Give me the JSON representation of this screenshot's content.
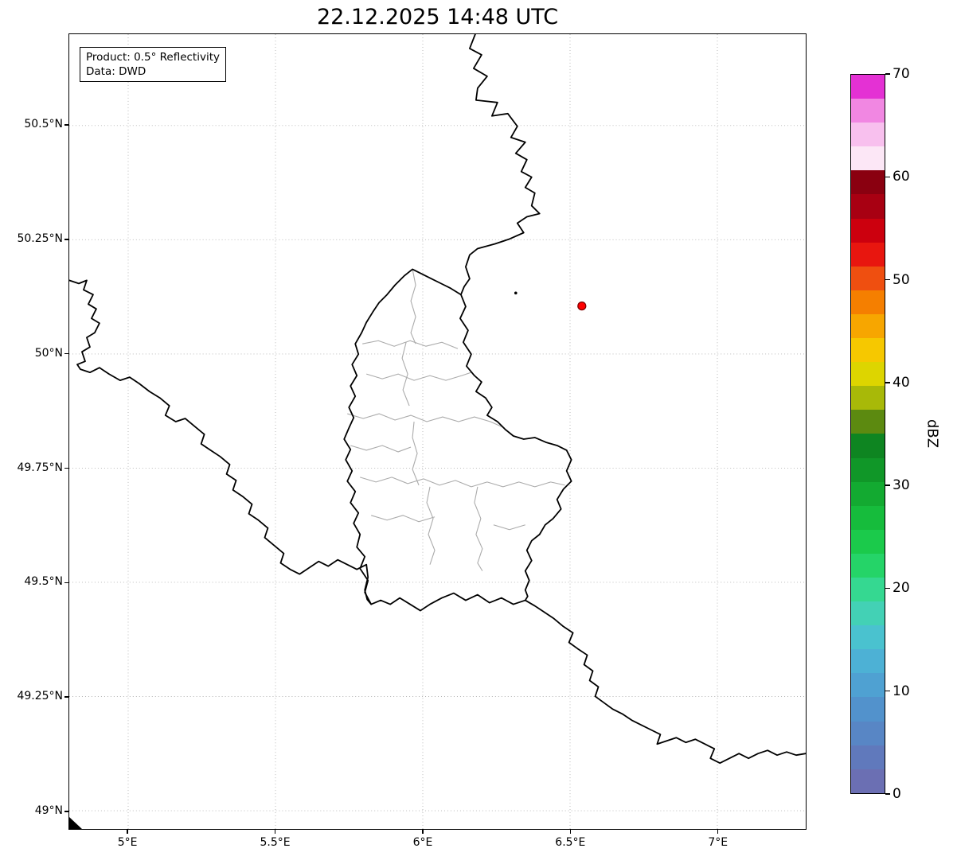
{
  "title": "22.12.2025 14:48 UTC",
  "annotation": {
    "line1": "Product: 0.5° Reflectivity",
    "line2": "Data: DWD"
  },
  "axes": {
    "x": {
      "min": 4.8,
      "max": 7.3,
      "ticks": [
        {
          "value": 5.0,
          "label": "5°E"
        },
        {
          "value": 5.5,
          "label": "5.5°E"
        },
        {
          "value": 6.0,
          "label": "6°E"
        },
        {
          "value": 6.5,
          "label": "6.5°E"
        },
        {
          "value": 7.0,
          "label": "7°E"
        }
      ]
    },
    "y": {
      "min": 48.96,
      "max": 50.7,
      "ticks": [
        {
          "value": 49.0,
          "label": "49°N"
        },
        {
          "value": 49.25,
          "label": "49.25°N"
        },
        {
          "value": 49.5,
          "label": "49.5°N"
        },
        {
          "value": 49.75,
          "label": "49.75°N"
        },
        {
          "value": 50.0,
          "label": "50°N"
        },
        {
          "value": 50.25,
          "label": "50.25°N"
        },
        {
          "value": 50.5,
          "label": "50.5°N"
        }
      ]
    }
  },
  "colorbar": {
    "label": "dBZ",
    "min": 0,
    "max": 70,
    "ticks": [
      0,
      10,
      20,
      30,
      40,
      50,
      60,
      70
    ],
    "colors": [
      "#6b6fb3",
      "#6079bc",
      "#5886c5",
      "#5292cc",
      "#4fa1d2",
      "#4db1d5",
      "#4ac2cf",
      "#43d1b5",
      "#35d891",
      "#25d468",
      "#1bca4b",
      "#16bc3c",
      "#13aa31",
      "#109728",
      "#0e8521",
      "#5c8a10",
      "#a8b908",
      "#ddd500",
      "#f6c800",
      "#f7a600",
      "#f57f00",
      "#ef4f10",
      "#e8160f",
      "#cc000e",
      "#a80012",
      "#8a0010",
      "#fce7f6",
      "#f8c0ee",
      "#f187e2",
      "#e431d4"
    ]
  },
  "marker": {
    "lon": 6.54,
    "lat": 50.105,
    "fill": "#ff0000",
    "edge": "#7f0000"
  },
  "style": {
    "grid_color": "#b3b3b3",
    "country_border_color": "#000000",
    "district_border_color": "#ababab"
  },
  "map_layers": {
    "units": "plot-px",
    "country_borders": [
      [
        [
          511,
          0
        ],
        [
          504,
          18
        ],
        [
          519,
          26
        ],
        [
          509,
          43
        ],
        [
          526,
          53
        ],
        [
          514,
          68
        ],
        [
          512,
          83
        ],
        [
          539,
          86
        ],
        [
          532,
          103
        ],
        [
          552,
          100
        ],
        [
          564,
          116
        ],
        [
          556,
          130
        ],
        [
          574,
          136
        ],
        [
          562,
          150
        ],
        [
          576,
          158
        ],
        [
          569,
          173
        ],
        [
          582,
          180
        ],
        [
          574,
          193
        ],
        [
          586,
          200
        ],
        [
          582,
          216
        ],
        [
          592,
          226
        ],
        [
          576,
          230
        ],
        [
          564,
          238
        ],
        [
          572,
          250
        ],
        [
          554,
          258
        ],
        [
          536,
          264
        ],
        [
          514,
          270
        ],
        [
          504,
          278
        ],
        [
          499,
          293
        ],
        [
          504,
          308
        ],
        [
          497,
          318
        ],
        [
          493,
          328
        ]
      ],
      [
        [
          493,
          328
        ],
        [
          499,
          343
        ],
        [
          492,
          358
        ],
        [
          502,
          373
        ],
        [
          496,
          388
        ],
        [
          506,
          403
        ],
        [
          500,
          418
        ],
        [
          510,
          430
        ],
        [
          519,
          438
        ],
        [
          512,
          450
        ],
        [
          524,
          458
        ],
        [
          532,
          470
        ],
        [
          526,
          480
        ],
        [
          539,
          488
        ],
        [
          549,
          498
        ],
        [
          559,
          506
        ],
        [
          572,
          510
        ],
        [
          586,
          508
        ],
        [
          600,
          514
        ],
        [
          614,
          518
        ],
        [
          626,
          524
        ],
        [
          632,
          536
        ],
        [
          626,
          550
        ],
        [
          632,
          563
        ],
        [
          622,
          573
        ],
        [
          614,
          586
        ],
        [
          619,
          598
        ],
        [
          609,
          610
        ],
        [
          599,
          618
        ],
        [
          592,
          630
        ],
        [
          582,
          638
        ],
        [
          576,
          650
        ],
        [
          582,
          663
        ],
        [
          574,
          676
        ],
        [
          579,
          688
        ],
        [
          574,
          700
        ],
        [
          577,
          708
        ],
        [
          574,
          713
        ],
        [
          559,
          718
        ],
        [
          544,
          710
        ],
        [
          529,
          716
        ],
        [
          514,
          706
        ],
        [
          499,
          713
        ],
        [
          484,
          704
        ],
        [
          469,
          710
        ],
        [
          454,
          718
        ],
        [
          442,
          726
        ],
        [
          429,
          718
        ],
        [
          416,
          710
        ],
        [
          404,
          718
        ],
        [
          392,
          713
        ],
        [
          380,
          718
        ],
        [
          372,
          703
        ],
        [
          376,
          688
        ],
        [
          366,
          673
        ],
        [
          372,
          658
        ],
        [
          362,
          646
        ],
        [
          366,
          630
        ],
        [
          358,
          616
        ],
        [
          364,
          603
        ],
        [
          354,
          590
        ],
        [
          360,
          576
        ],
        [
          350,
          563
        ],
        [
          356,
          550
        ],
        [
          348,
          536
        ],
        [
          354,
          523
        ],
        [
          346,
          510
        ],
        [
          352,
          496
        ],
        [
          358,
          483
        ],
        [
          352,
          470
        ],
        [
          360,
          456
        ],
        [
          354,
          443
        ],
        [
          362,
          430
        ],
        [
          356,
          416
        ],
        [
          364,
          403
        ],
        [
          360,
          390
        ],
        [
          368,
          376
        ],
        [
          374,
          363
        ],
        [
          382,
          350
        ],
        [
          390,
          338
        ],
        [
          400,
          328
        ],
        [
          410,
          316
        ],
        [
          422,
          304
        ],
        [
          432,
          296
        ],
        [
          444,
          302
        ],
        [
          456,
          308
        ],
        [
          468,
          314
        ],
        [
          480,
          320
        ],
        [
          493,
          328
        ]
      ],
      [
        [
          0,
          310
        ],
        [
          12,
          314
        ],
        [
          22,
          310
        ],
        [
          18,
          322
        ],
        [
          30,
          328
        ],
        [
          24,
          340
        ],
        [
          34,
          346
        ],
        [
          28,
          358
        ],
        [
          38,
          364
        ],
        [
          32,
          376
        ],
        [
          22,
          382
        ],
        [
          26,
          394
        ],
        [
          16,
          400
        ],
        [
          20,
          412
        ],
        [
          10,
          416
        ],
        [
          14,
          422
        ],
        [
          26,
          426
        ],
        [
          38,
          420
        ],
        [
          50,
          428
        ],
        [
          64,
          436
        ],
        [
          76,
          432
        ],
        [
          88,
          440
        ],
        [
          101,
          450
        ],
        [
          114,
          458
        ],
        [
          126,
          468
        ],
        [
          121,
          480
        ],
        [
          134,
          488
        ],
        [
          146,
          484
        ],
        [
          158,
          494
        ],
        [
          170,
          504
        ],
        [
          166,
          516
        ],
        [
          178,
          524
        ],
        [
          190,
          532
        ],
        [
          202,
          542
        ],
        [
          198,
          554
        ],
        [
          210,
          562
        ],
        [
          206,
          574
        ],
        [
          218,
          582
        ],
        [
          230,
          592
        ],
        [
          226,
          604
        ],
        [
          238,
          612
        ],
        [
          250,
          622
        ],
        [
          246,
          634
        ],
        [
          258,
          644
        ],
        [
          270,
          654
        ],
        [
          266,
          666
        ],
        [
          278,
          674
        ],
        [
          290,
          680
        ],
        [
          302,
          672
        ],
        [
          314,
          664
        ],
        [
          326,
          670
        ],
        [
          338,
          662
        ],
        [
          350,
          668
        ],
        [
          362,
          674
        ],
        [
          374,
          668
        ],
        [
          376,
          684
        ],
        [
          372,
          700
        ],
        [
          375,
          712
        ],
        [
          380,
          718
        ]
      ],
      [
        [
          574,
          713
        ],
        [
          586,
          720
        ],
        [
          598,
          728
        ],
        [
          610,
          736
        ],
        [
          622,
          746
        ],
        [
          634,
          754
        ],
        [
          629,
          766
        ],
        [
          640,
          774
        ],
        [
          652,
          782
        ],
        [
          648,
          794
        ],
        [
          659,
          802
        ],
        [
          655,
          814
        ],
        [
          666,
          822
        ],
        [
          662,
          834
        ],
        [
          673,
          842
        ],
        [
          684,
          850
        ],
        [
          696,
          856
        ],
        [
          708,
          864
        ],
        [
          720,
          870
        ],
        [
          732,
          876
        ],
        [
          744,
          882
        ],
        [
          740,
          894
        ],
        [
          752,
          890
        ],
        [
          764,
          886
        ],
        [
          776,
          892
        ],
        [
          788,
          888
        ],
        [
          800,
          894
        ],
        [
          812,
          900
        ],
        [
          807,
          912
        ],
        [
          819,
          918
        ],
        [
          831,
          912
        ],
        [
          843,
          906
        ],
        [
          855,
          912
        ],
        [
          867,
          906
        ],
        [
          879,
          902
        ],
        [
          891,
          908
        ],
        [
          903,
          904
        ],
        [
          915,
          908
        ],
        [
          927,
          906
        ]
      ]
    ],
    "district_borders": [
      [
        [
          369,
          390
        ],
        [
          389,
          386
        ],
        [
          409,
          393
        ],
        [
          429,
          386
        ],
        [
          449,
          393
        ],
        [
          469,
          388
        ],
        [
          489,
          396
        ]
      ],
      [
        [
          374,
          428
        ],
        [
          394,
          434
        ],
        [
          414,
          428
        ],
        [
          434,
          436
        ],
        [
          454,
          430
        ],
        [
          474,
          436
        ],
        [
          494,
          430
        ],
        [
          506,
          426
        ]
      ],
      [
        [
          424,
          388
        ],
        [
          419,
          408
        ],
        [
          426,
          428
        ],
        [
          420,
          448
        ],
        [
          428,
          468
        ]
      ],
      [
        [
          350,
          478
        ],
        [
          370,
          484
        ],
        [
          390,
          478
        ],
        [
          410,
          486
        ],
        [
          430,
          480
        ],
        [
          450,
          488
        ],
        [
          470,
          482
        ],
        [
          490,
          488
        ],
        [
          510,
          482
        ],
        [
          530,
          488
        ],
        [
          548,
          496
        ]
      ],
      [
        [
          434,
          488
        ],
        [
          432,
          508
        ],
        [
          438,
          528
        ],
        [
          432,
          548
        ],
        [
          440,
          568
        ]
      ],
      [
        [
          354,
          518
        ],
        [
          374,
          524
        ],
        [
          394,
          518
        ],
        [
          414,
          526
        ],
        [
          430,
          520
        ]
      ],
      [
        [
          366,
          558
        ],
        [
          386,
          564
        ],
        [
          406,
          558
        ],
        [
          426,
          566
        ],
        [
          446,
          560
        ],
        [
          466,
          568
        ],
        [
          486,
          562
        ],
        [
          506,
          570
        ],
        [
          526,
          564
        ],
        [
          546,
          570
        ],
        [
          566,
          564
        ],
        [
          586,
          570
        ],
        [
          606,
          564
        ],
        [
          624,
          568
        ]
      ],
      [
        [
          454,
          570
        ],
        [
          450,
          590
        ],
        [
          458,
          610
        ],
        [
          452,
          630
        ],
        [
          460,
          650
        ],
        [
          454,
          668
        ]
      ],
      [
        [
          514,
          570
        ],
        [
          510,
          590
        ],
        [
          518,
          610
        ],
        [
          512,
          630
        ],
        [
          520,
          648
        ],
        [
          514,
          666
        ],
        [
          520,
          676
        ]
      ],
      [
        [
          380,
          606
        ],
        [
          400,
          612
        ],
        [
          420,
          606
        ],
        [
          440,
          614
        ],
        [
          460,
          608
        ]
      ],
      [
        [
          534,
          618
        ],
        [
          554,
          624
        ],
        [
          574,
          618
        ]
      ],
      [
        [
          432,
          296
        ],
        [
          436,
          316
        ],
        [
          430,
          336
        ],
        [
          436,
          356
        ],
        [
          430,
          376
        ],
        [
          436,
          390
        ]
      ]
    ],
    "enclave_dot": [
      562,
      326
    ],
    "corner_fragment": [
      [
        0,
        986
      ],
      [
        16,
        1001
      ],
      [
        0,
        1001
      ]
    ]
  }
}
